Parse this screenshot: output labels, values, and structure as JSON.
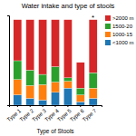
{
  "chart_data": {
    "type": "bar",
    "stacked": true,
    "title": "Water intake and type of stools",
    "xlabel": "Type of Stools",
    "categories": [
      "Type 1",
      "Type 2",
      "Type 3",
      "Type 4",
      "Type 5",
      "Type 6",
      "Type 7"
    ],
    "series": [
      {
        "name": "<1000 m",
        "values": [
          12,
          8,
          6,
          15,
          20,
          4,
          8
        ]
      },
      {
        "name": "1000-15",
        "values": [
          18,
          15,
          18,
          12,
          8,
          8,
          12
        ]
      },
      {
        "name": "1500-20",
        "values": [
          22,
          18,
          12,
          18,
          4,
          8,
          18
        ]
      },
      {
        "name": ">2000 m",
        "values": [
          48,
          59,
          64,
          55,
          68,
          30,
          62
        ]
      }
    ],
    "ylim": [
      0,
      105
    ],
    "tick_labels": "x",
    "grid": false,
    "legend": "right",
    "annotations": [
      {
        "text": "*",
        "x": "Type 7",
        "y": 100.5
      }
    ]
  }
}
